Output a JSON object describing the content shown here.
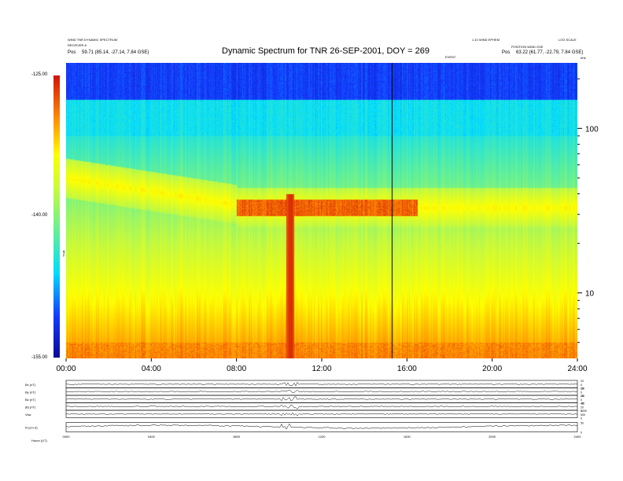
{
  "header": {
    "left_line1": "WIND TNR DYNAMIC SPECTRUM",
    "left_line2": "RECEIVER A",
    "left_line3_prefix": "Pos",
    "left_line3_values": "59.71 (85.14, -27.14, 7.84 GSE)",
    "right_line1": "1.10 WIND EPHEM",
    "right_line2": "POSITION WIND GSE",
    "right_line3_prefix": "Pos",
    "right_line3_values": "63.22 (61.77, -22.79, 7.84 GSE)",
    "right_top_small": "LOG SCALE",
    "marker_label": "EVENT",
    "units_label": "kHz"
  },
  "chart_data": {
    "type": "heatmap",
    "title": "Dynamic Spectrum for TNR 26-SEP-2001, DOY = 269",
    "x_tick_labels": [
      "00:00",
      "04:00",
      "08:00",
      "12:00",
      "16:00",
      "20:00",
      "24:00"
    ],
    "x_ticks_hours": [
      0,
      4,
      8,
      12,
      16,
      20,
      24
    ],
    "xlim_hours": [
      0,
      24
    ],
    "y_axis_scale": "log",
    "y_tick_labels": [
      "100",
      "10"
    ],
    "y_ticks_khz": [
      100,
      10
    ],
    "ylim_khz": [
      4,
      250
    ],
    "colorbar_label": "TNR",
    "colorbar_tick_labels": [
      "-125.00",
      "-140.00",
      "-155.00"
    ],
    "colorbar_ticks_db": [
      -125,
      -140,
      -155
    ],
    "colorbar_range_db": [
      -155,
      -125
    ],
    "vertical_marker_hour": 15.3,
    "features": {
      "background_level_db": -145,
      "band_center_khz": 33,
      "intense_burst_hour": 10.5,
      "emission_hours": [
        8.0,
        16.5
      ]
    },
    "panels": [
      {
        "label": "Bx (nT)",
        "range": [
          -20,
          20
        ],
        "tick_labels": [
          "20",
          "0",
          "-20"
        ]
      },
      {
        "label": "By (nT)",
        "range": [
          -20,
          20
        ],
        "tick_labels": [
          "20",
          "0",
          "-20"
        ]
      },
      {
        "label": "Bz (nT)",
        "range": [
          -20,
          20
        ],
        "tick_labels": [
          "20",
          "0",
          "-20"
        ]
      },
      {
        "label": "|B| (nT)",
        "range": [
          0,
          40
        ],
        "tick_labels": [
          "40",
          "20",
          "0"
        ]
      },
      {
        "label": "Vsw",
        "range": [
          0,
          1000
        ],
        "tick_labels": [
          "1000",
          "500",
          "0"
        ]
      },
      {
        "label": "N (cm-3)",
        "range": [
          0,
          50
        ],
        "tick_labels": [
          "50",
          "0"
        ]
      }
    ],
    "bottom_tick_labels": [
      "0000",
      "0400",
      "0800",
      "1200",
      "1600",
      "2000",
      "2400"
    ],
    "footer_label": "Hours (UT)"
  }
}
